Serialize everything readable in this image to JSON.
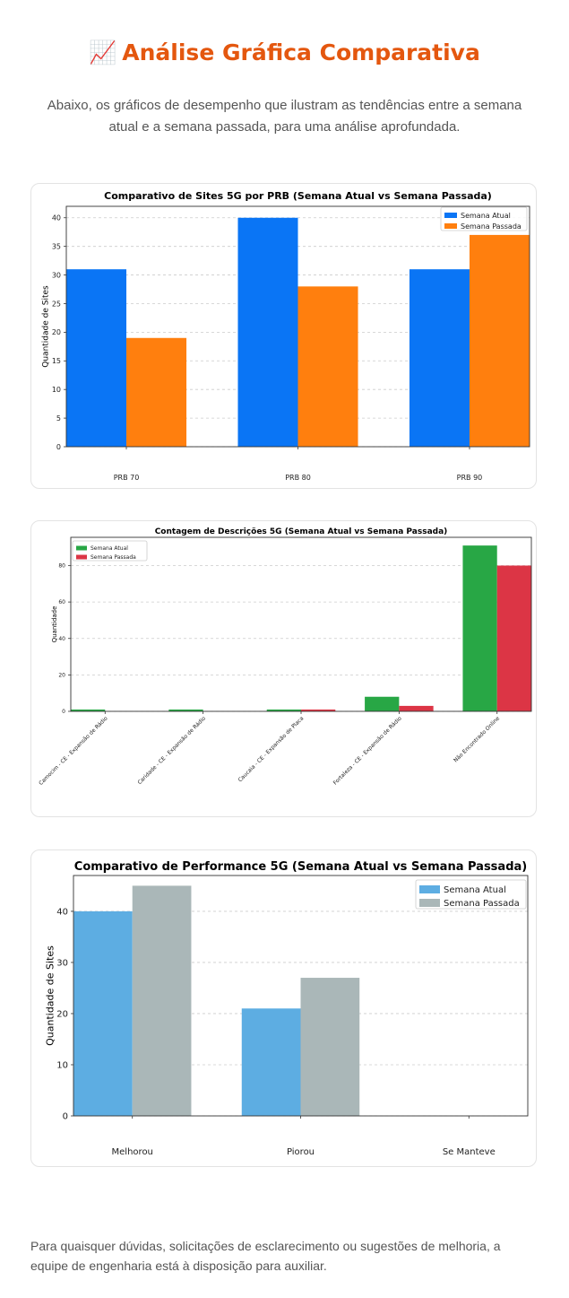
{
  "header": {
    "icon": "chart-increasing-icon",
    "title": "Análise Gráfica Comparativa",
    "intro": "Abaixo, os gráficos de desempenho que ilustram as tendências entre a semana atual e a semana passada, para uma análise aprofundada."
  },
  "footer": {
    "text": "Para quaisquer dúvidas, solicitações de esclarecimento ou sugestões de melhoria, a equipe de engenharia está à disposição para auxiliar."
  },
  "chart_data": [
    {
      "type": "bar",
      "title": "Comparativo de Sites 5G por PRB (Semana Atual vs Semana Passada)",
      "xlabel": "",
      "ylabel": "Quantidade de Sites",
      "categories": [
        "PRB 70",
        "PRB 80",
        "PRB 90"
      ],
      "series": [
        {
          "name": "Semana Atual",
          "values": [
            31,
            40,
            31
          ],
          "color": "#0a75f5"
        },
        {
          "name": "Semana Passada",
          "values": [
            19,
            28,
            37
          ],
          "color": "#ff7f0e"
        }
      ],
      "ylim": [
        0,
        42
      ],
      "yticks": [
        0,
        5,
        10,
        15,
        20,
        25,
        30,
        35,
        40
      ],
      "grid": "horizontal dashed",
      "legend": "top-right"
    },
    {
      "type": "bar",
      "title": "Contagem de Descrições 5G (Semana Atual vs Semana Passada)",
      "xlabel": "",
      "ylabel": "Quantidade",
      "categories": [
        "Camocim - CE - Expansão de Rádio",
        "Caridade - CE - Expansão de Rádio",
        "Caucaia - CE - Expansão de Placa",
        "Fortaleza - CE - Expansão de Rádio",
        "Não Encontrado Online"
      ],
      "series": [
        {
          "name": "Semana Atual",
          "values": [
            1,
            1,
            1,
            8,
            91
          ],
          "color": "#28a745"
        },
        {
          "name": "Semana Passada",
          "values": [
            0,
            0,
            1,
            3,
            80
          ],
          "color": "#dc3545"
        }
      ],
      "ylim": [
        0,
        95.5
      ],
      "yticks": [
        0,
        20,
        40,
        60,
        80
      ],
      "grid": "horizontal dashed",
      "legend": "top-left"
    },
    {
      "type": "bar",
      "title": "Comparativo de Performance 5G (Semana Atual vs Semana Passada)",
      "xlabel": "",
      "ylabel": "Quantidade de Sites",
      "categories": [
        "Melhorou",
        "Piorou",
        "Se Manteve"
      ],
      "series": [
        {
          "name": "Semana Atual",
          "values": [
            40,
            21,
            0
          ],
          "color": "#5dade2"
        },
        {
          "name": "Semana Passada",
          "values": [
            45,
            27,
            0
          ],
          "color": "#aab7b8"
        }
      ],
      "ylim": [
        0,
        47
      ],
      "yticks": [
        0,
        10,
        20,
        30,
        40
      ],
      "grid": "horizontal dashed",
      "legend": "top-right"
    }
  ]
}
